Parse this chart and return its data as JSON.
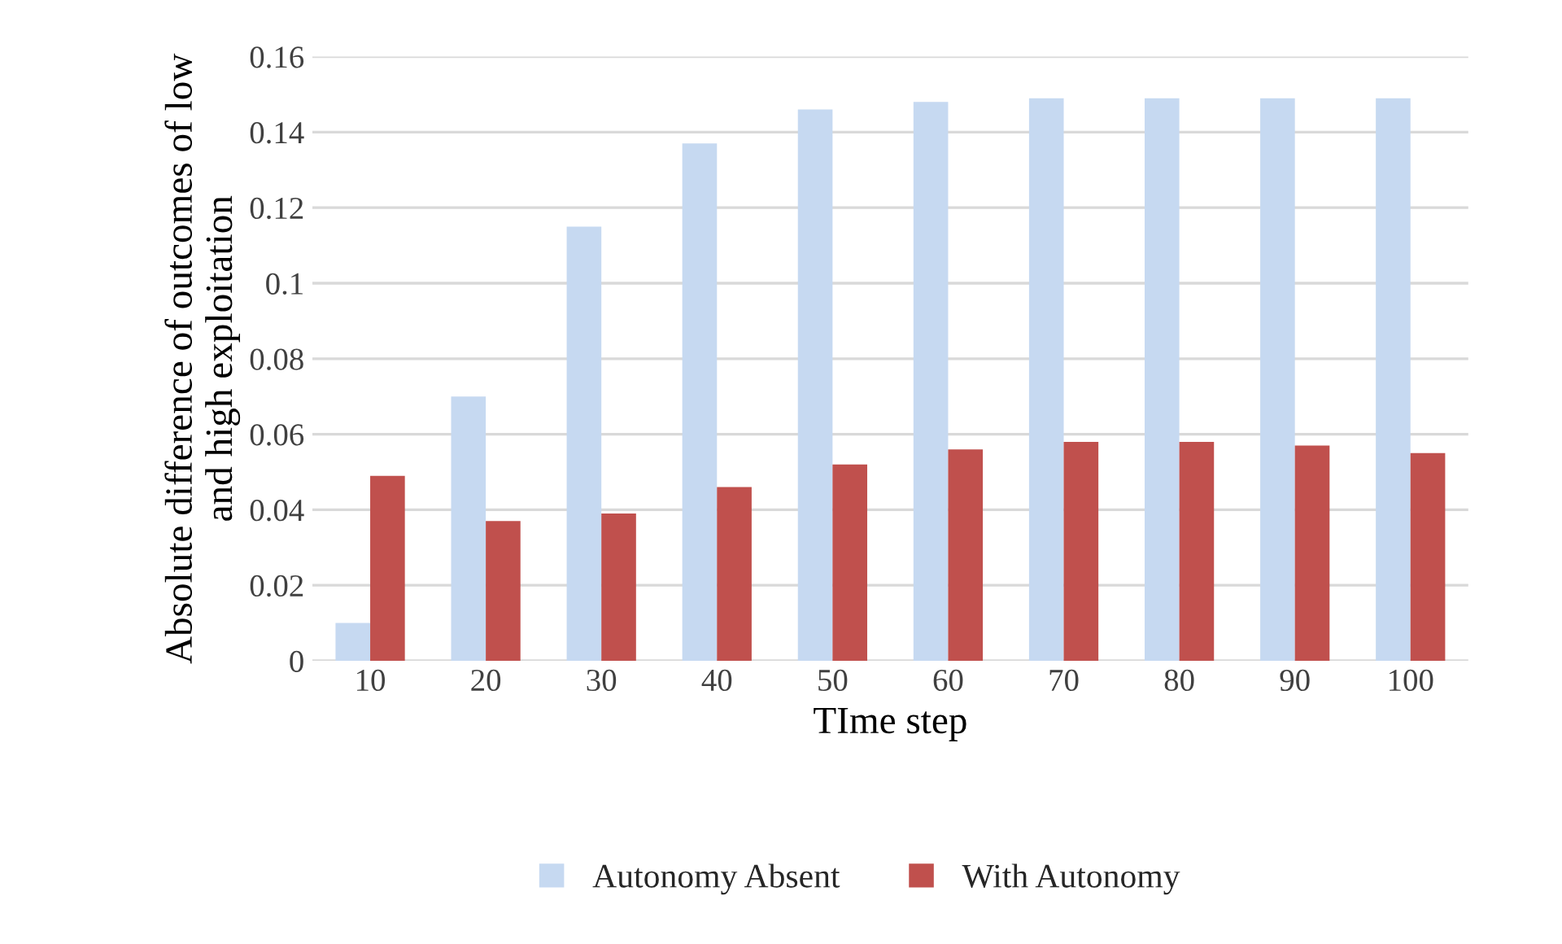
{
  "chart_data": {
    "type": "bar",
    "xlabel": "TIme step",
    "ylabel": "Absolute difference of outcomes of low\nand high exploitation",
    "categories": [
      "10",
      "20",
      "30",
      "40",
      "50",
      "60",
      "70",
      "80",
      "90",
      "100"
    ],
    "series": [
      {
        "name": "Autonomy Absent",
        "color": "#c6d9f1",
        "values": [
          0.01,
          0.07,
          0.115,
          0.137,
          0.146,
          0.148,
          0.149,
          0.149,
          0.149,
          0.149
        ]
      },
      {
        "name": "With Autonomy",
        "color": "#c0504d",
        "values": [
          0.049,
          0.037,
          0.039,
          0.046,
          0.052,
          0.056,
          0.058,
          0.058,
          0.057,
          0.055
        ]
      }
    ],
    "ylim": [
      0,
      0.16
    ],
    "yticks": [
      0,
      0.02,
      0.04,
      0.06,
      0.08,
      0.1,
      0.12,
      0.14,
      0.16
    ],
    "grid": "y",
    "legend": "bottom"
  }
}
